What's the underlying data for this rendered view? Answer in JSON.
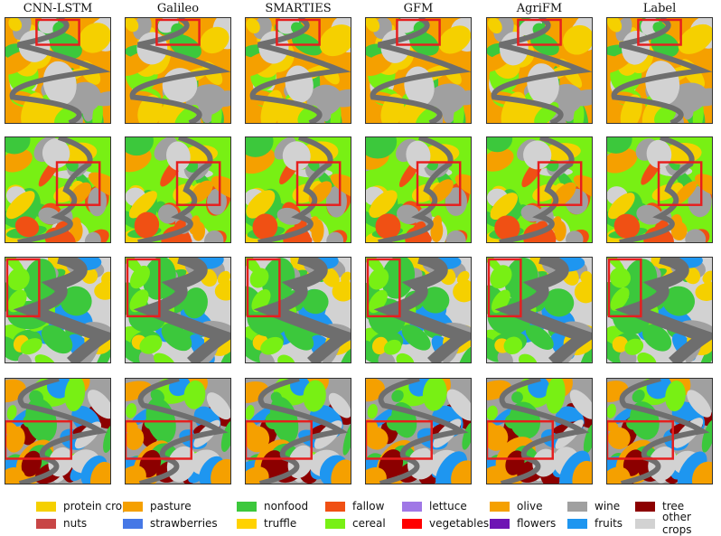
{
  "columns": [
    "CNN-LSTM",
    "Galileo",
    "SMARTIES",
    "GFM",
    "AgriFM",
    "Label"
  ],
  "legend": [
    {
      "label": "protein crops",
      "color": "#f5d000"
    },
    {
      "label": "pasture",
      "color": "#f5a000"
    },
    {
      "label": "nonfood",
      "color": "#3cc83c"
    },
    {
      "label": "fallow",
      "color": "#f05014"
    },
    {
      "label": "lettuce",
      "color": "#a078e6"
    },
    {
      "label": "olive",
      "color": "#f5a000"
    },
    {
      "label": "wine",
      "color": "#a0a0a0"
    },
    {
      "label": "tree",
      "color": "#8c0000"
    },
    {
      "label": "nuts",
      "color": "#c84646"
    },
    {
      "label": "strawberries",
      "color": "#4678e6"
    },
    {
      "label": "truffle",
      "color": "#ffd200"
    },
    {
      "label": "cereal",
      "color": "#78f014"
    },
    {
      "label": "vegetables",
      "color": "#ff0000"
    },
    {
      "label": "flowers",
      "color": "#6e14b4"
    },
    {
      "label": "fruits",
      "color": "#1e96f0"
    },
    {
      "label": "other crops",
      "color": "#d2d2d2"
    }
  ],
  "colors": {
    "background_gray": "#6e6e6e",
    "highlight_box": "#e61e1e"
  }
}
